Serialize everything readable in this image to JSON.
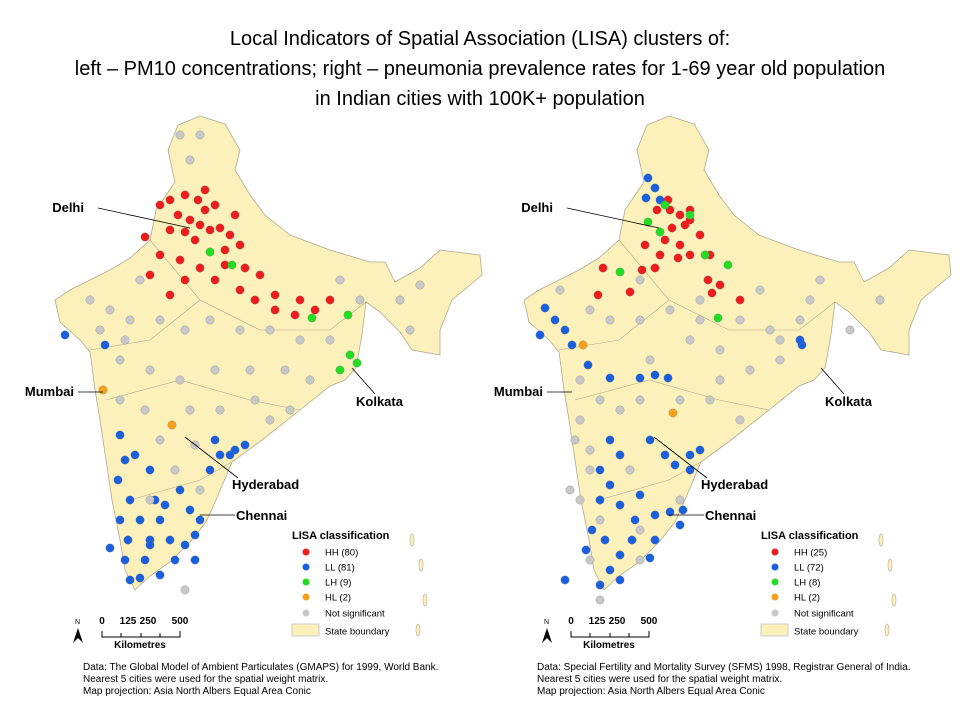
{
  "title": {
    "line1": "Local Indicators of Spatial Association (LISA) clusters of:",
    "line2": "left – PM10 concentrations; right – pneumonia prevalence rates for 1-69 year old population",
    "line3": "in Indian cities with 100K+ population"
  },
  "colors": {
    "HH": "#ee1c1c",
    "LL": "#1a5fe0",
    "LH": "#22dd22",
    "HL": "#f5a21a",
    "NS": "#c8c8c8",
    "land": "#fdf1bb",
    "border": "#b0a890"
  },
  "cities": {
    "delhi": "Delhi",
    "mumbai": "Mumbai",
    "kolkata": "Kolkata",
    "hyderabad": "Hyderabad",
    "chennai": "Chennai"
  },
  "scale": {
    "ticks": [
      "0",
      "125",
      "250",
      "500"
    ],
    "unit": "Kilometres",
    "north": "N"
  },
  "maps": [
    {
      "legend": {
        "title": "LISA classification",
        "items": [
          "HH (80)",
          "LL (81)",
          "LH (9)",
          "HL (2)",
          "Not significant",
          "State boundary"
        ]
      },
      "notes": [
        "Data: The Global Model of Ambient Particulates (GMAPS) for 1999, World Bank.",
        "Nearest 5 cities were used for the spatial weight matrix.",
        "Map projection: Asia North Albers Equal Area Conic"
      ]
    },
    {
      "legend": {
        "title": "LISA classification",
        "items": [
          "HH (25)",
          "LL (72)",
          "LH (8)",
          "HL (2)",
          "Not significant",
          "State boundary"
        ]
      },
      "notes": [
        "Data: Special Fertility and Mortality Survey (SFMS) 1998, Registrar General of India.",
        "Nearest 5 cities were used for the spatial weight matrix.",
        "Map projection: Asia North Albers Equal Area Conic"
      ]
    }
  ]
}
